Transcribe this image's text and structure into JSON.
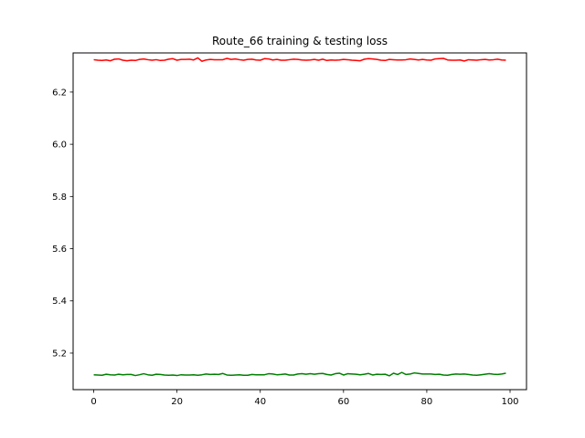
{
  "chart_data": {
    "type": "line",
    "title": "Route_66 training & testing loss",
    "xlabel": "",
    "ylabel": "",
    "xlim": [
      -4.95,
      103.95
    ],
    "ylim": [
      5.06,
      6.35
    ],
    "xticks": [
      0,
      20,
      40,
      60,
      80,
      100
    ],
    "yticks": [
      5.2,
      5.4,
      5.6,
      5.8,
      6.0,
      6.2
    ],
    "ytick_labels": [
      "5.2",
      "5.4",
      "5.6",
      "5.8",
      "6.0",
      "6.2"
    ],
    "grid": false,
    "series": [
      {
        "color": "#ff0000",
        "x": [
          0,
          1,
          2,
          3,
          4,
          5,
          6,
          7,
          8,
          9,
          10,
          11,
          12,
          13,
          14,
          15,
          16,
          17,
          18,
          19,
          20,
          21,
          22,
          23,
          24,
          25,
          26,
          27,
          28,
          29,
          30,
          31,
          32,
          33,
          34,
          35,
          36,
          37,
          38,
          39,
          40,
          41,
          42,
          43,
          44,
          45,
          46,
          47,
          48,
          49,
          50,
          51,
          52,
          53,
          54,
          55,
          56,
          57,
          58,
          59,
          60,
          61,
          62,
          63,
          64,
          65,
          66,
          67,
          68,
          69,
          70,
          71,
          72,
          73,
          74,
          75,
          76,
          77,
          78,
          79,
          80,
          81,
          82,
          83,
          84,
          85,
          86,
          87,
          88,
          89,
          90,
          91,
          92,
          93,
          94,
          95,
          96,
          97,
          98,
          99
        ],
        "values": [
          6.324,
          6.322,
          6.321,
          6.323,
          6.32,
          6.326,
          6.327,
          6.322,
          6.32,
          6.322,
          6.321,
          6.325,
          6.327,
          6.324,
          6.322,
          6.324,
          6.321,
          6.322,
          6.326,
          6.328,
          6.322,
          6.325,
          6.325,
          6.326,
          6.323,
          6.331,
          6.318,
          6.323,
          6.325,
          6.324,
          6.324,
          6.324,
          6.329,
          6.325,
          6.327,
          6.324,
          6.322,
          6.325,
          6.326,
          6.323,
          6.322,
          6.328,
          6.327,
          6.323,
          6.325,
          6.322,
          6.322,
          6.324,
          6.326,
          6.325,
          6.323,
          6.322,
          6.323,
          6.325,
          6.322,
          6.326,
          6.321,
          6.323,
          6.322,
          6.323,
          6.325,
          6.324,
          6.322,
          6.321,
          6.32,
          6.326,
          6.328,
          6.327,
          6.325,
          6.322,
          6.321,
          6.325,
          6.324,
          6.323,
          6.323,
          6.324,
          6.327,
          6.325,
          6.323,
          6.325,
          6.323,
          6.322,
          6.327,
          6.328,
          6.329,
          6.323,
          6.322,
          6.322,
          6.323,
          6.319,
          6.324,
          6.323,
          6.322,
          6.324,
          6.325,
          6.323,
          6.324,
          6.326,
          6.323,
          6.322
        ]
      },
      {
        "color": "#008000",
        "x": [
          0,
          1,
          2,
          3,
          4,
          5,
          6,
          7,
          8,
          9,
          10,
          11,
          12,
          13,
          14,
          15,
          16,
          17,
          18,
          19,
          20,
          21,
          22,
          23,
          24,
          25,
          26,
          27,
          28,
          29,
          30,
          31,
          32,
          33,
          34,
          35,
          36,
          37,
          38,
          39,
          40,
          41,
          42,
          43,
          44,
          45,
          46,
          47,
          48,
          49,
          50,
          51,
          52,
          53,
          54,
          55,
          56,
          57,
          58,
          59,
          60,
          61,
          62,
          63,
          64,
          65,
          66,
          67,
          68,
          69,
          70,
          71,
          72,
          73,
          74,
          75,
          76,
          77,
          78,
          79,
          80,
          81,
          82,
          83,
          84,
          85,
          86,
          87,
          88,
          89,
          90,
          91,
          92,
          93,
          94,
          95,
          96,
          97,
          98,
          99
        ],
        "values": [
          5.117,
          5.116,
          5.115,
          5.119,
          5.117,
          5.116,
          5.119,
          5.117,
          5.118,
          5.118,
          5.114,
          5.117,
          5.121,
          5.117,
          5.115,
          5.119,
          5.118,
          5.116,
          5.115,
          5.116,
          5.114,
          5.117,
          5.116,
          5.116,
          5.117,
          5.115,
          5.117,
          5.12,
          5.118,
          5.119,
          5.118,
          5.122,
          5.116,
          5.115,
          5.116,
          5.117,
          5.115,
          5.115,
          5.118,
          5.117,
          5.117,
          5.117,
          5.121,
          5.12,
          5.117,
          5.118,
          5.12,
          5.116,
          5.116,
          5.12,
          5.121,
          5.119,
          5.121,
          5.119,
          5.121,
          5.122,
          5.118,
          5.116,
          5.121,
          5.123,
          5.116,
          5.121,
          5.12,
          5.119,
          5.117,
          5.119,
          5.122,
          5.116,
          5.119,
          5.118,
          5.119,
          5.113,
          5.123,
          5.118,
          5.126,
          5.118,
          5.12,
          5.124,
          5.122,
          5.12,
          5.12,
          5.12,
          5.118,
          5.119,
          5.116,
          5.115,
          5.118,
          5.12,
          5.119,
          5.12,
          5.118,
          5.116,
          5.115,
          5.117,
          5.119,
          5.121,
          5.119,
          5.118,
          5.12,
          5.123
        ]
      }
    ]
  }
}
